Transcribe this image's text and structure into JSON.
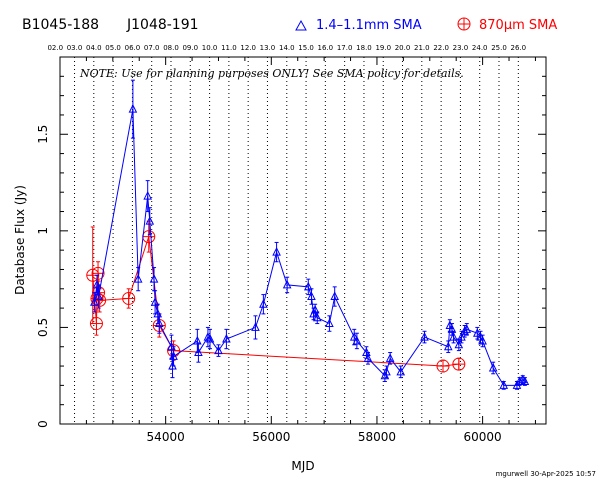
{
  "header": {
    "source_name": "B1045-188",
    "alt_name": "J1048-191"
  },
  "footer": {
    "credit": "mgurwell 30-Apr-2025 10:57"
  },
  "note": "NOTE: Use for planning purposes ONLY!  See SMA policy for details.",
  "chart_data": {
    "type": "scatter",
    "xlabel": "MJD",
    "ylabel": "Database Flux (Jy)",
    "xlim": [
      52000,
      61200
    ],
    "ylim": [
      0,
      1.9
    ],
    "xticks": [
      54000,
      56000,
      58000,
      60000
    ],
    "yticks": [
      0,
      0.5,
      1,
      1.5
    ],
    "top_axis_labels": [
      "02.0",
      "03.0",
      "04.0",
      "05.0",
      "06.0",
      "07.0",
      "08.0",
      "09.0",
      "10.0",
      "11.0",
      "12.0",
      "13.0",
      "14.0",
      "15.0",
      "16.0",
      "17.0",
      "18.0",
      "19.0",
      "20.0",
      "21.0",
      "22.0",
      "23.0",
      "24.0",
      "25.0",
      "26.0"
    ],
    "top_axis_positions": [
      51910,
      52275,
      52640,
      53005,
      53371,
      53736,
      54101,
      54466,
      54832,
      55197,
      55562,
      55927,
      56293,
      56658,
      57023,
      57388,
      57754,
      58119,
      58484,
      58849,
      59215,
      59580,
      59945,
      60310,
      60676
    ],
    "grid": "vertical dotted lines at year boundaries",
    "series": [
      {
        "name": "1.4–1.1mm SMA",
        "color": "#0000ff",
        "marker": "triangle",
        "points": [
          {
            "x": 52650,
            "y": 0.63,
            "e": 0.05
          },
          {
            "x": 52700,
            "y": 0.72,
            "e": 0.05
          },
          {
            "x": 52730,
            "y": 0.66,
            "e": 0.06
          },
          {
            "x": 53380,
            "y": 1.63,
            "e": 0.15
          },
          {
            "x": 53480,
            "y": 0.75,
            "e": 0.06
          },
          {
            "x": 53660,
            "y": 1.18,
            "e": 0.08
          },
          {
            "x": 53700,
            "y": 1.05,
            "e": 0.07
          },
          {
            "x": 53780,
            "y": 0.75,
            "e": 0.06
          },
          {
            "x": 53800,
            "y": 0.63,
            "e": 0.06
          },
          {
            "x": 53850,
            "y": 0.57,
            "e": 0.05
          },
          {
            "x": 53880,
            "y": 0.52,
            "e": 0.05
          },
          {
            "x": 54110,
            "y": 0.4,
            "e": 0.06
          },
          {
            "x": 54130,
            "y": 0.3,
            "e": 0.06
          },
          {
            "x": 54150,
            "y": 0.35,
            "e": 0.05
          },
          {
            "x": 54600,
            "y": 0.43,
            "e": 0.06
          },
          {
            "x": 54620,
            "y": 0.37,
            "e": 0.05
          },
          {
            "x": 54800,
            "y": 0.45,
            "e": 0.05
          },
          {
            "x": 54840,
            "y": 0.44,
            "e": 0.05
          },
          {
            "x": 55000,
            "y": 0.38,
            "e": 0.03
          },
          {
            "x": 55150,
            "y": 0.44,
            "e": 0.05
          },
          {
            "x": 55700,
            "y": 0.5,
            "e": 0.06
          },
          {
            "x": 55850,
            "y": 0.62,
            "e": 0.05
          },
          {
            "x": 56100,
            "y": 0.89,
            "e": 0.05
          },
          {
            "x": 56300,
            "y": 0.72,
            "e": 0.04
          },
          {
            "x": 56700,
            "y": 0.71,
            "e": 0.04
          },
          {
            "x": 56760,
            "y": 0.66,
            "e": 0.04
          },
          {
            "x": 56800,
            "y": 0.57,
            "e": 0.03
          },
          {
            "x": 56830,
            "y": 0.59,
            "e": 0.03
          },
          {
            "x": 56870,
            "y": 0.55,
            "e": 0.03
          },
          {
            "x": 57100,
            "y": 0.52,
            "e": 0.04
          },
          {
            "x": 57200,
            "y": 0.66,
            "e": 0.05
          },
          {
            "x": 57570,
            "y": 0.45,
            "e": 0.04
          },
          {
            "x": 57620,
            "y": 0.43,
            "e": 0.04
          },
          {
            "x": 57800,
            "y": 0.37,
            "e": 0.03
          },
          {
            "x": 57830,
            "y": 0.34,
            "e": 0.03
          },
          {
            "x": 58150,
            "y": 0.25,
            "e": 0.03
          },
          {
            "x": 58180,
            "y": 0.27,
            "e": 0.03
          },
          {
            "x": 58250,
            "y": 0.34,
            "e": 0.03
          },
          {
            "x": 58450,
            "y": 0.27,
            "e": 0.03
          },
          {
            "x": 58900,
            "y": 0.45,
            "e": 0.03
          },
          {
            "x": 59350,
            "y": 0.4,
            "e": 0.03
          },
          {
            "x": 59380,
            "y": 0.51,
            "e": 0.03
          },
          {
            "x": 59420,
            "y": 0.49,
            "e": 0.03
          },
          {
            "x": 59450,
            "y": 0.45,
            "e": 0.03
          },
          {
            "x": 59550,
            "y": 0.41,
            "e": 0.03
          },
          {
            "x": 59600,
            "y": 0.45,
            "e": 0.03
          },
          {
            "x": 59660,
            "y": 0.48,
            "e": 0.03
          },
          {
            "x": 59700,
            "y": 0.49,
            "e": 0.03
          },
          {
            "x": 59900,
            "y": 0.47,
            "e": 0.03
          },
          {
            "x": 59960,
            "y": 0.45,
            "e": 0.03
          },
          {
            "x": 60000,
            "y": 0.43,
            "e": 0.03
          },
          {
            "x": 60200,
            "y": 0.29,
            "e": 0.03
          },
          {
            "x": 60400,
            "y": 0.2,
            "e": 0.02
          },
          {
            "x": 60650,
            "y": 0.2,
            "e": 0.02
          },
          {
            "x": 60700,
            "y": 0.22,
            "e": 0.02
          },
          {
            "x": 60760,
            "y": 0.23,
            "e": 0.02
          },
          {
            "x": 60800,
            "y": 0.22,
            "e": 0.02
          }
        ]
      },
      {
        "name": "870μm SMA",
        "color": "#ff0000",
        "marker": "circle-plus",
        "points": [
          {
            "x": 52620,
            "y": 0.77,
            "e": 0.25
          },
          {
            "x": 52690,
            "y": 0.52,
            "e": 0.06
          },
          {
            "x": 52700,
            "y": 0.65,
            "e": 0.06
          },
          {
            "x": 52720,
            "y": 0.78,
            "e": 0.06
          },
          {
            "x": 52730,
            "y": 0.68,
            "e": 0.06
          },
          {
            "x": 52750,
            "y": 0.64,
            "e": 0.06
          },
          {
            "x": 53300,
            "y": 0.65,
            "e": 0.05
          },
          {
            "x": 53680,
            "y": 0.97,
            "e": 0.08
          },
          {
            "x": 53880,
            "y": 0.51,
            "e": 0.06
          },
          {
            "x": 54150,
            "y": 0.38,
            "e": 0.05
          },
          {
            "x": 59250,
            "y": 0.3,
            "e": 0.03
          },
          {
            "x": 59550,
            "y": 0.31,
            "e": 0.03
          }
        ]
      }
    ]
  }
}
